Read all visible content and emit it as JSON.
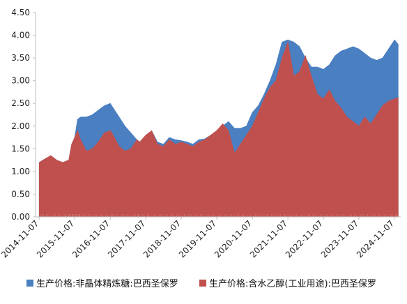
{
  "chart_data": {
    "type": "area",
    "title": "",
    "xlabel": "",
    "ylabel": "",
    "ylim": [
      0,
      4.5
    ],
    "yticks": [
      "0.00",
      "0.50",
      "1.00",
      "1.50",
      "2.00",
      "2.50",
      "3.00",
      "3.50",
      "4.00",
      "4.50"
    ],
    "xticks": [
      "2014-11-07",
      "2015-11-07",
      "2016-11-07",
      "2017-11-07",
      "2018-11-07",
      "2019-11-07",
      "2020-11-07",
      "2021-11-07",
      "2022-11-07",
      "2023-11-07",
      "2024-11-07"
    ],
    "grid": false,
    "legend_position": "bottom",
    "series": [
      {
        "name": "生产价格:非晶体精炼糖:巴西圣保罗",
        "color": "#4a7fc1",
        "points": [
          [
            "2014-11-07",
            1.2
          ],
          [
            "2015-01-07",
            1.28
          ],
          [
            "2015-03-07",
            1.35
          ],
          [
            "2015-05-07",
            1.25
          ],
          [
            "2015-07-07",
            1.2
          ],
          [
            "2015-09-07",
            1.25
          ],
          [
            "2015-10-07",
            1.6
          ],
          [
            "2015-11-07",
            1.75
          ],
          [
            "2015-12-07",
            2.15
          ],
          [
            "2016-01-07",
            2.2
          ],
          [
            "2016-03-07",
            2.2
          ],
          [
            "2016-05-07",
            2.25
          ],
          [
            "2016-07-07",
            2.35
          ],
          [
            "2016-09-07",
            2.45
          ],
          [
            "2016-11-07",
            2.5
          ],
          [
            "2016-12-07",
            2.4
          ],
          [
            "2017-02-07",
            2.2
          ],
          [
            "2017-04-07",
            2.0
          ],
          [
            "2017-06-07",
            1.85
          ],
          [
            "2017-08-07",
            1.7
          ],
          [
            "2017-09-07",
            1.65
          ],
          [
            "2017-11-07",
            1.8
          ],
          [
            "2018-01-07",
            1.9
          ],
          [
            "2018-03-07",
            1.65
          ],
          [
            "2018-05-07",
            1.6
          ],
          [
            "2018-07-07",
            1.75
          ],
          [
            "2018-09-07",
            1.7
          ],
          [
            "2018-11-07",
            1.68
          ],
          [
            "2019-01-07",
            1.65
          ],
          [
            "2019-03-07",
            1.6
          ],
          [
            "2019-05-07",
            1.7
          ],
          [
            "2019-07-07",
            1.72
          ],
          [
            "2019-09-07",
            1.8
          ],
          [
            "2019-11-07",
            1.9
          ],
          [
            "2020-01-07",
            2.0
          ],
          [
            "2020-03-07",
            2.1
          ],
          [
            "2020-05-07",
            1.95
          ],
          [
            "2020-07-07",
            1.95
          ],
          [
            "2020-09-07",
            2.0
          ],
          [
            "2020-11-07",
            2.3
          ],
          [
            "2021-01-07",
            2.45
          ],
          [
            "2021-03-07",
            2.7
          ],
          [
            "2021-05-07",
            3.0
          ],
          [
            "2021-07-07",
            3.35
          ],
          [
            "2021-09-07",
            3.85
          ],
          [
            "2021-11-07",
            3.9
          ],
          [
            "2022-01-07",
            3.85
          ],
          [
            "2022-03-07",
            3.75
          ],
          [
            "2022-05-07",
            3.5
          ],
          [
            "2022-07-07",
            3.3
          ],
          [
            "2022-09-07",
            3.3
          ],
          [
            "2022-11-07",
            3.25
          ],
          [
            "2023-01-07",
            3.35
          ],
          [
            "2023-03-07",
            3.55
          ],
          [
            "2023-05-07",
            3.65
          ],
          [
            "2023-07-07",
            3.7
          ],
          [
            "2023-09-07",
            3.75
          ],
          [
            "2023-11-07",
            3.7
          ],
          [
            "2024-01-07",
            3.6
          ],
          [
            "2024-03-07",
            3.5
          ],
          [
            "2024-05-07",
            3.45
          ],
          [
            "2024-07-07",
            3.5
          ],
          [
            "2024-09-07",
            3.7
          ],
          [
            "2024-11-07",
            3.9
          ],
          [
            "2024-12-15",
            3.8
          ]
        ]
      },
      {
        "name": "生产价格:含水乙醇(工业用途):巴西圣保罗",
        "color": "#c0504d",
        "points": [
          [
            "2014-11-07",
            1.2
          ],
          [
            "2015-01-07",
            1.28
          ],
          [
            "2015-03-07",
            1.35
          ],
          [
            "2015-05-07",
            1.25
          ],
          [
            "2015-07-07",
            1.2
          ],
          [
            "2015-09-07",
            1.25
          ],
          [
            "2015-10-07",
            1.6
          ],
          [
            "2015-11-07",
            1.75
          ],
          [
            "2015-12-07",
            1.9
          ],
          [
            "2016-01-07",
            1.7
          ],
          [
            "2016-03-07",
            1.45
          ],
          [
            "2016-05-07",
            1.5
          ],
          [
            "2016-07-07",
            1.65
          ],
          [
            "2016-09-07",
            1.85
          ],
          [
            "2016-11-07",
            1.9
          ],
          [
            "2016-12-07",
            1.8
          ],
          [
            "2017-02-07",
            1.55
          ],
          [
            "2017-04-07",
            1.45
          ],
          [
            "2017-06-07",
            1.5
          ],
          [
            "2017-08-07",
            1.7
          ],
          [
            "2017-09-07",
            1.65
          ],
          [
            "2017-11-07",
            1.8
          ],
          [
            "2018-01-07",
            1.9
          ],
          [
            "2018-03-07",
            1.6
          ],
          [
            "2018-05-07",
            1.55
          ],
          [
            "2018-07-07",
            1.7
          ],
          [
            "2018-09-07",
            1.6
          ],
          [
            "2018-11-07",
            1.65
          ],
          [
            "2019-01-07",
            1.6
          ],
          [
            "2019-03-07",
            1.55
          ],
          [
            "2019-05-07",
            1.65
          ],
          [
            "2019-07-07",
            1.7
          ],
          [
            "2019-09-07",
            1.8
          ],
          [
            "2019-11-07",
            1.9
          ],
          [
            "2020-01-07",
            2.05
          ],
          [
            "2020-03-07",
            1.9
          ],
          [
            "2020-05-07",
            1.4
          ],
          [
            "2020-07-07",
            1.6
          ],
          [
            "2020-09-07",
            1.8
          ],
          [
            "2020-11-07",
            2.0
          ],
          [
            "2021-01-07",
            2.3
          ],
          [
            "2021-03-07",
            2.6
          ],
          [
            "2021-05-07",
            2.85
          ],
          [
            "2021-07-07",
            3.0
          ],
          [
            "2021-09-07",
            3.5
          ],
          [
            "2021-11-07",
            3.85
          ],
          [
            "2022-01-07",
            3.1
          ],
          [
            "2022-03-07",
            3.2
          ],
          [
            "2022-05-07",
            3.55
          ],
          [
            "2022-07-07",
            3.1
          ],
          [
            "2022-09-07",
            2.7
          ],
          [
            "2022-11-07",
            2.6
          ],
          [
            "2023-01-07",
            2.8
          ],
          [
            "2023-03-07",
            2.55
          ],
          [
            "2023-05-07",
            2.4
          ],
          [
            "2023-07-07",
            2.2
          ],
          [
            "2023-09-07",
            2.1
          ],
          [
            "2023-11-07",
            2.0
          ],
          [
            "2024-01-07",
            2.2
          ],
          [
            "2024-03-07",
            2.05
          ],
          [
            "2024-05-07",
            2.25
          ],
          [
            "2024-07-07",
            2.45
          ],
          [
            "2024-09-07",
            2.55
          ],
          [
            "2024-11-07",
            2.6
          ],
          [
            "2024-12-15",
            2.62
          ]
        ]
      }
    ]
  }
}
